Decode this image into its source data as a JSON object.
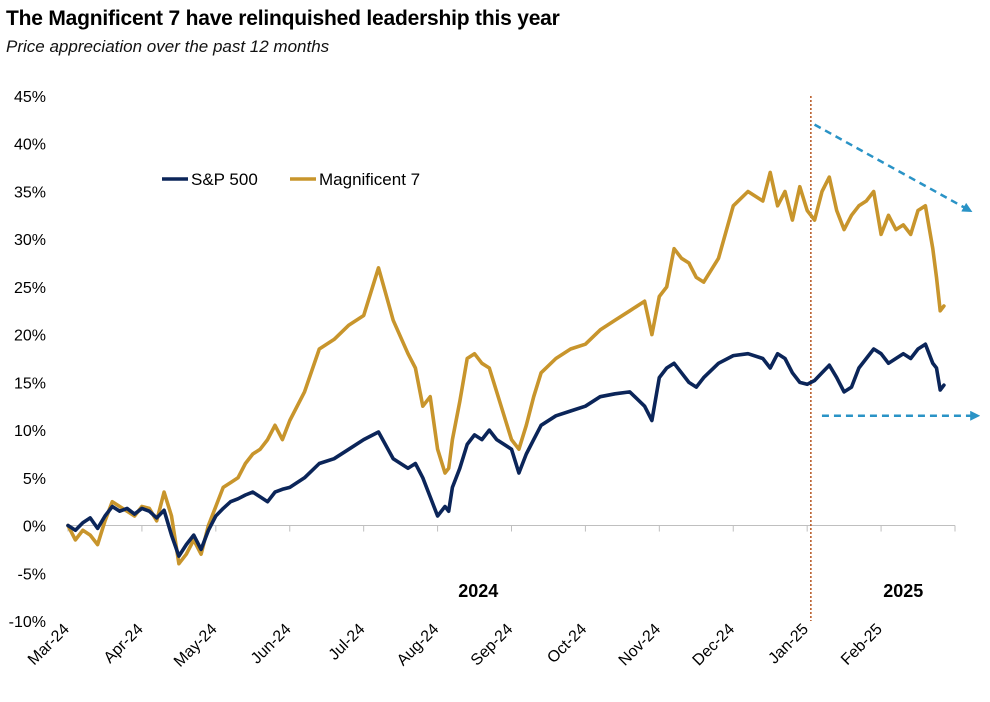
{
  "header": {
    "title": "The Magnificent 7 have relinquished leadership this year",
    "subtitle": "Price appreciation over the past 12 months"
  },
  "colors": {
    "sp500": "#0b2559",
    "mag7": "#c8952c",
    "divider": "#b5531e",
    "arrow": "#2a93c6",
    "axis": "#bfbfbf"
  },
  "chart_data": {
    "type": "line",
    "title": "The Magnificent 7 have relinquished leadership this year",
    "subtitle": "Price appreciation over the past 12 months",
    "y_tick_labels": [
      "45%",
      "40%",
      "35%",
      "30%",
      "25%",
      "20%",
      "15%",
      "10%",
      "5%",
      "0%",
      "-5%",
      "-10%"
    ],
    "y_ticks": [
      45,
      40,
      35,
      30,
      25,
      20,
      15,
      10,
      5,
      0,
      -5,
      -10
    ],
    "ylim": [
      -10,
      45
    ],
    "x_tick_labels": [
      "Mar-24",
      "Apr-24",
      "May-24",
      "Jun-24",
      "Jul-24",
      "Aug-24",
      "Sep-24",
      "Oct-24",
      "Nov-24",
      "Dec-24",
      "Jan-25",
      "Feb-25"
    ],
    "x_ticks": [
      0,
      1,
      2,
      3,
      4,
      5,
      6,
      7,
      8,
      9,
      10,
      11
    ],
    "xlim": [
      0,
      12
    ],
    "year_labels": [
      {
        "text": "2024",
        "x": 5.55
      },
      {
        "text": "2025",
        "x": 11.3
      }
    ],
    "divider_x": 10.05,
    "legend_position": "upper-left",
    "series": [
      {
        "name": "S&P 500",
        "x": [
          0,
          0.1,
          0.2,
          0.3,
          0.4,
          0.5,
          0.6,
          0.7,
          0.8,
          0.9,
          1.0,
          1.1,
          1.2,
          1.3,
          1.4,
          1.5,
          1.6,
          1.7,
          1.8,
          1.9,
          2.0,
          2.1,
          2.2,
          2.3,
          2.4,
          2.5,
          2.6,
          2.7,
          2.8,
          2.9,
          3.0,
          3.2,
          3.4,
          3.6,
          3.8,
          4.0,
          4.2,
          4.4,
          4.6,
          4.7,
          4.8,
          4.9,
          5.0,
          5.1,
          5.15,
          5.2,
          5.3,
          5.4,
          5.5,
          5.6,
          5.7,
          5.8,
          6.0,
          6.1,
          6.2,
          6.3,
          6.4,
          6.6,
          6.8,
          7.0,
          7.2,
          7.4,
          7.6,
          7.8,
          7.9,
          8.0,
          8.1,
          8.2,
          8.3,
          8.4,
          8.5,
          8.6,
          8.8,
          9.0,
          9.2,
          9.4,
          9.5,
          9.6,
          9.7,
          9.8,
          9.9,
          10.0,
          10.1,
          10.2,
          10.3,
          10.4,
          10.5,
          10.6,
          10.7,
          10.8,
          10.9,
          11.0,
          11.1,
          11.2,
          11.3,
          11.4,
          11.5,
          11.6,
          11.7,
          11.75,
          11.8,
          11.85
        ],
        "values": [
          0.0,
          -0.5,
          0.3,
          0.8,
          -0.3,
          1.0,
          2.0,
          1.5,
          1.8,
          1.2,
          1.8,
          1.5,
          0.8,
          1.6,
          -1.0,
          -3.2,
          -2.0,
          -1.0,
          -2.5,
          -0.5,
          1.0,
          1.8,
          2.5,
          2.8,
          3.2,
          3.5,
          3.0,
          2.5,
          3.5,
          3.8,
          4.0,
          5.0,
          6.5,
          7.0,
          8.0,
          9.0,
          9.8,
          7.0,
          6.0,
          6.5,
          5.0,
          3.0,
          1.0,
          2.0,
          1.5,
          4.0,
          6.0,
          8.5,
          9.5,
          9.0,
          10.0,
          9.0,
          8.0,
          5.5,
          7.5,
          9.0,
          10.5,
          11.5,
          12.0,
          12.5,
          13.5,
          13.8,
          14.0,
          12.5,
          11.0,
          15.5,
          16.5,
          17.0,
          16.0,
          15.0,
          14.5,
          15.5,
          17.0,
          17.8,
          18.0,
          17.5,
          16.5,
          18.0,
          17.5,
          16.0,
          15.0,
          14.8,
          15.2,
          16.0,
          16.8,
          15.5,
          14.0,
          14.5,
          16.5,
          17.5,
          18.5,
          18.0,
          17.0,
          17.5,
          18.0,
          17.5,
          18.5,
          19.0,
          17.0,
          16.5,
          14.2,
          14.7
        ]
      },
      {
        "name": "Magnificent 7",
        "x": [
          0,
          0.1,
          0.2,
          0.3,
          0.4,
          0.5,
          0.6,
          0.7,
          0.8,
          0.9,
          1.0,
          1.1,
          1.2,
          1.3,
          1.4,
          1.5,
          1.6,
          1.7,
          1.8,
          1.9,
          2.0,
          2.1,
          2.2,
          2.3,
          2.4,
          2.5,
          2.6,
          2.7,
          2.8,
          2.9,
          3.0,
          3.2,
          3.4,
          3.6,
          3.8,
          4.0,
          4.2,
          4.4,
          4.6,
          4.7,
          4.8,
          4.9,
          5.0,
          5.1,
          5.15,
          5.2,
          5.3,
          5.4,
          5.5,
          5.6,
          5.7,
          5.8,
          6.0,
          6.1,
          6.2,
          6.3,
          6.4,
          6.6,
          6.8,
          7.0,
          7.2,
          7.4,
          7.6,
          7.8,
          7.9,
          8.0,
          8.1,
          8.2,
          8.3,
          8.4,
          8.5,
          8.6,
          8.8,
          9.0,
          9.2,
          9.4,
          9.5,
          9.6,
          9.7,
          9.8,
          9.9,
          10.0,
          10.1,
          10.2,
          10.3,
          10.4,
          10.5,
          10.6,
          10.7,
          10.8,
          10.9,
          11.0,
          11.1,
          11.2,
          11.3,
          11.4,
          11.5,
          11.6,
          11.7,
          11.75,
          11.8,
          11.85
        ],
        "values": [
          0.0,
          -1.5,
          -0.5,
          -1.0,
          -2.0,
          0.5,
          2.5,
          2.0,
          1.5,
          1.0,
          2.0,
          1.8,
          0.5,
          3.5,
          1.0,
          -4.0,
          -3.0,
          -1.5,
          -3.0,
          0.0,
          2.0,
          4.0,
          4.5,
          5.0,
          6.5,
          7.5,
          8.0,
          9.0,
          10.5,
          9.0,
          11.0,
          14.0,
          18.5,
          19.5,
          21.0,
          22.0,
          27.0,
          21.5,
          18.0,
          16.5,
          12.5,
          13.5,
          8.0,
          5.5,
          6.0,
          9.0,
          13.0,
          17.5,
          18.0,
          17.0,
          16.5,
          14.0,
          9.0,
          8.0,
          10.5,
          13.5,
          16.0,
          17.5,
          18.5,
          19.0,
          20.5,
          21.5,
          22.5,
          23.5,
          20.0,
          24.0,
          25.0,
          29.0,
          28.0,
          27.5,
          26.0,
          25.5,
          28.0,
          33.5,
          35.0,
          34.0,
          37.0,
          33.5,
          35.0,
          32.0,
          35.5,
          33.0,
          32.0,
          35.0,
          36.5,
          33.0,
          31.0,
          32.5,
          33.5,
          34.0,
          35.0,
          30.5,
          32.5,
          31.0,
          31.5,
          30.5,
          33.0,
          33.5,
          29.0,
          26.0,
          22.5,
          23.0
        ]
      }
    ],
    "annotations": [
      {
        "type": "arrow",
        "label": "",
        "from": [
          10.1,
          42
        ],
        "to": [
          12.2,
          33
        ]
      },
      {
        "type": "arrow",
        "label": "",
        "from": [
          10.2,
          11.5
        ],
        "to": [
          12.3,
          11.5
        ]
      }
    ]
  }
}
